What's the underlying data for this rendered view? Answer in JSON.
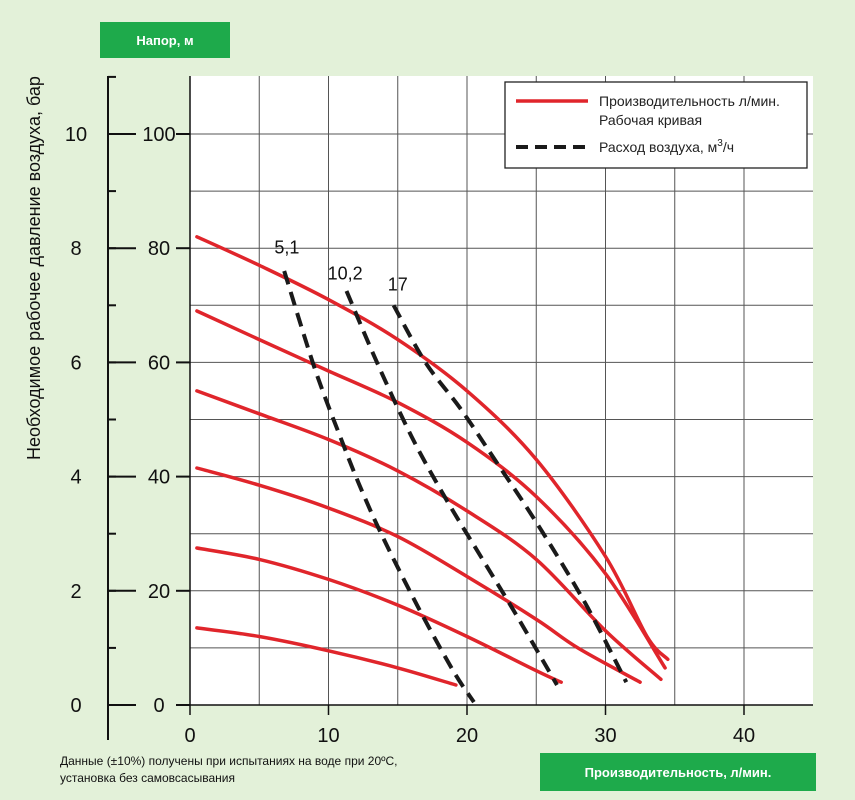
{
  "header": {
    "y_badge": "Напор, м"
  },
  "footer": {
    "x_badge": "Производительность, л/мин.",
    "note_line1": "Данные (±10%) получены при испытаниях на воде при 20ºС,",
    "note_line2": "установка без самовсасывания"
  },
  "colors": {
    "badge": "#1eaa4b",
    "background": "#e3f1d9",
    "curve": "#e0252b",
    "air": "#1a1a1a"
  },
  "chart_data": {
    "type": "line",
    "ylabel_outer": "Необходимое рабочее давление воздуха, бар",
    "x_ticks": [
      0,
      10,
      20,
      30,
      40
    ],
    "y_ticks": [
      0,
      20,
      40,
      60,
      80,
      100
    ],
    "bar_ticks": [
      0,
      2,
      4,
      6,
      8,
      10
    ],
    "xlim": [
      0,
      45
    ],
    "ylim": [
      0,
      100
    ],
    "grid": true,
    "legend": {
      "position": "top-right",
      "entries": [
        {
          "style": "solid",
          "line1": "Производительность л/мин.",
          "line2": "Рабочая кривая"
        },
        {
          "style": "dashed",
          "text": "Расход воздуха, м",
          "sup": "3",
          "suffix": "/ч"
        }
      ]
    },
    "series": [
      {
        "style": "solid",
        "points": [
          [
            0.5,
            82
          ],
          [
            5,
            77
          ],
          [
            10,
            71
          ],
          [
            15,
            64
          ],
          [
            20,
            55
          ],
          [
            25,
            43
          ],
          [
            30,
            26
          ],
          [
            33,
            12
          ],
          [
            34.5,
            8
          ]
        ]
      },
      {
        "style": "solid",
        "points": [
          [
            0.5,
            69
          ],
          [
            5,
            64
          ],
          [
            10,
            58.5
          ],
          [
            15,
            53
          ],
          [
            20,
            46
          ],
          [
            25,
            36.5
          ],
          [
            30,
            23
          ],
          [
            34.3,
            6.5
          ]
        ]
      },
      {
        "style": "solid",
        "points": [
          [
            0.5,
            55
          ],
          [
            5,
            51
          ],
          [
            10,
            46.5
          ],
          [
            15,
            41
          ],
          [
            20,
            34
          ],
          [
            25,
            25.5
          ],
          [
            30,
            13
          ],
          [
            34,
            4.5
          ]
        ]
      },
      {
        "style": "solid",
        "points": [
          [
            0.5,
            41.5
          ],
          [
            5,
            38.5
          ],
          [
            10,
            34.5
          ],
          [
            15,
            29.5
          ],
          [
            20,
            22.5
          ],
          [
            25,
            15
          ],
          [
            28,
            10
          ],
          [
            32.5,
            4
          ]
        ]
      },
      {
        "style": "solid",
        "points": [
          [
            0.5,
            27.5
          ],
          [
            5,
            25.5
          ],
          [
            10,
            22
          ],
          [
            15,
            17.5
          ],
          [
            20,
            12
          ],
          [
            25,
            6
          ],
          [
            26.8,
            4
          ]
        ]
      },
      {
        "style": "solid",
        "points": [
          [
            0.5,
            13.5
          ],
          [
            5,
            12
          ],
          [
            10,
            9.5
          ],
          [
            15,
            6.5
          ],
          [
            19.2,
            3.5
          ]
        ]
      }
    ],
    "air_lines": [
      {
        "label": "5,1",
        "label_pos": [
          7,
          78
        ],
        "points": [
          [
            6.8,
            76
          ],
          [
            9,
            59
          ],
          [
            11,
            46
          ],
          [
            12.5,
            37
          ],
          [
            14,
            29
          ],
          [
            16.5,
            17
          ],
          [
            19,
            6
          ],
          [
            20.5,
            0.5
          ]
        ]
      },
      {
        "label": "10,2",
        "label_pos": [
          11.2,
          73.5
        ],
        "points": [
          [
            11.3,
            72.5
          ],
          [
            13.5,
            60
          ],
          [
            16,
            47
          ],
          [
            18.5,
            36
          ],
          [
            21,
            26
          ],
          [
            23.5,
            16
          ],
          [
            26.5,
            3.5
          ]
        ]
      },
      {
        "label": "17",
        "label_pos": [
          15,
          71.5
        ],
        "points": [
          [
            14.7,
            70
          ],
          [
            17,
            60
          ],
          [
            19.5,
            52
          ],
          [
            22,
            43
          ],
          [
            25,
            32
          ],
          [
            28.5,
            18
          ],
          [
            31.5,
            4
          ]
        ]
      }
    ]
  }
}
